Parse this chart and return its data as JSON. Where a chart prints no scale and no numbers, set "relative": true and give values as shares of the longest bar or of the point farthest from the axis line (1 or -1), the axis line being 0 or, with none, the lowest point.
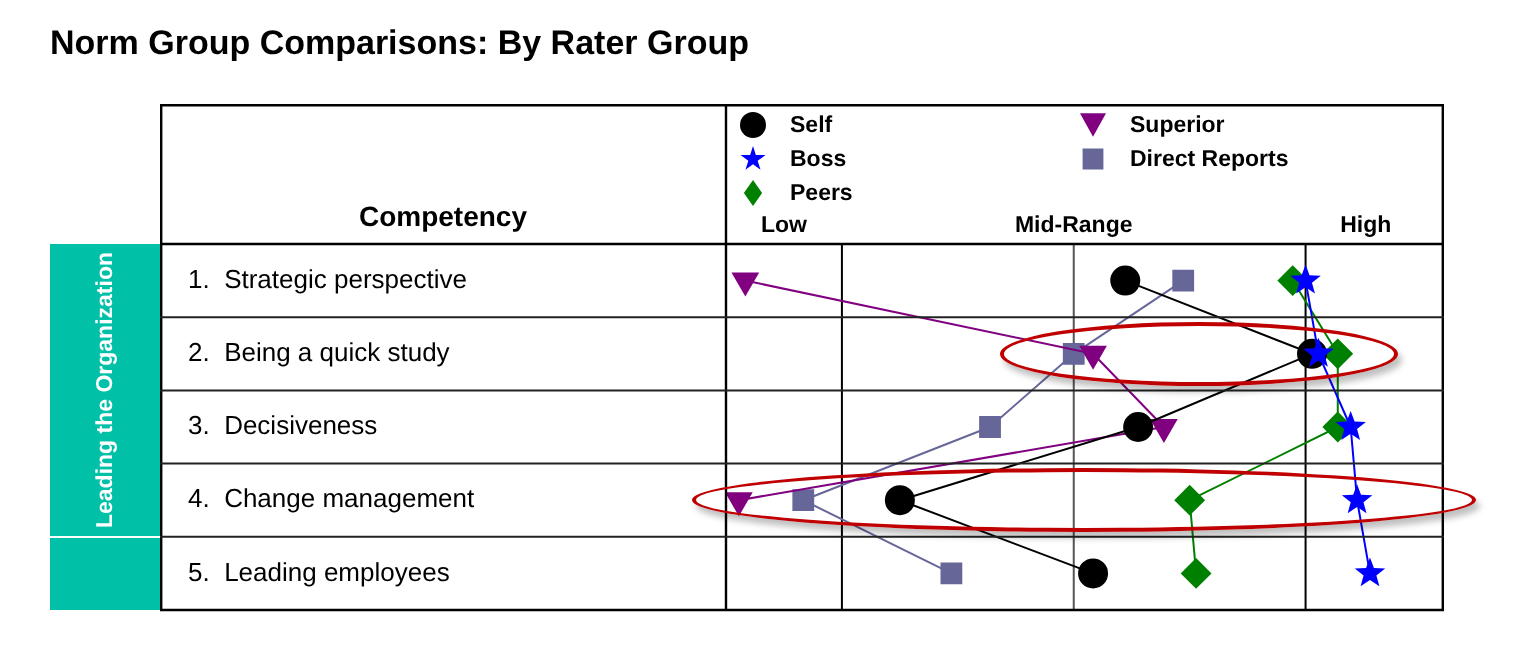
{
  "chart_data": {
    "type": "line",
    "orientation": "horizontal",
    "relative": true,
    "title": "Norm Group Comparisons: By Rater Group",
    "ylabel": "Competency",
    "annotations": [
      "Leading the Organization",
      "Low",
      "Mid-Range",
      "High"
    ],
    "categories": [
      "1.  Strategic perspective",
      "2.  Being a quick study",
      "3.  Decisiveness",
      "4.  Change management",
      "5.  Leading employees"
    ],
    "grid": "y",
    "legend": "top",
    "ref_lines": [
      {
        "axis": "x",
        "value": 0.18,
        "color": "#000000"
      },
      {
        "axis": "x",
        "value": 0.54,
        "color": "#555555"
      },
      {
        "axis": "x",
        "value": 0.9,
        "color": "#000000"
      }
    ],
    "series": [
      {
        "name": "Self",
        "color": "#000000",
        "marker": "circle",
        "values": [
          0.62,
          0.91,
          0.64,
          0.27,
          0.57
        ]
      },
      {
        "name": "Boss",
        "color": "#0000ff",
        "marker": "star",
        "values": [
          0.9,
          0.92,
          0.97,
          0.98,
          1
        ]
      },
      {
        "name": "Peers",
        "color": "#008000",
        "marker": "diamond",
        "values": [
          0.88,
          0.95,
          0.95,
          0.72,
          0.73
        ]
      },
      {
        "name": "Superior",
        "color": "#800080",
        "marker": "triangle",
        "values": [
          0.03,
          0.57,
          0.68,
          0.02,
          null
        ]
      },
      {
        "name": "Direct Reports",
        "color": "#666699",
        "marker": "square",
        "values": [
          0.71,
          0.54,
          0.41,
          0.12,
          0.35
        ]
      }
    ]
  }
}
